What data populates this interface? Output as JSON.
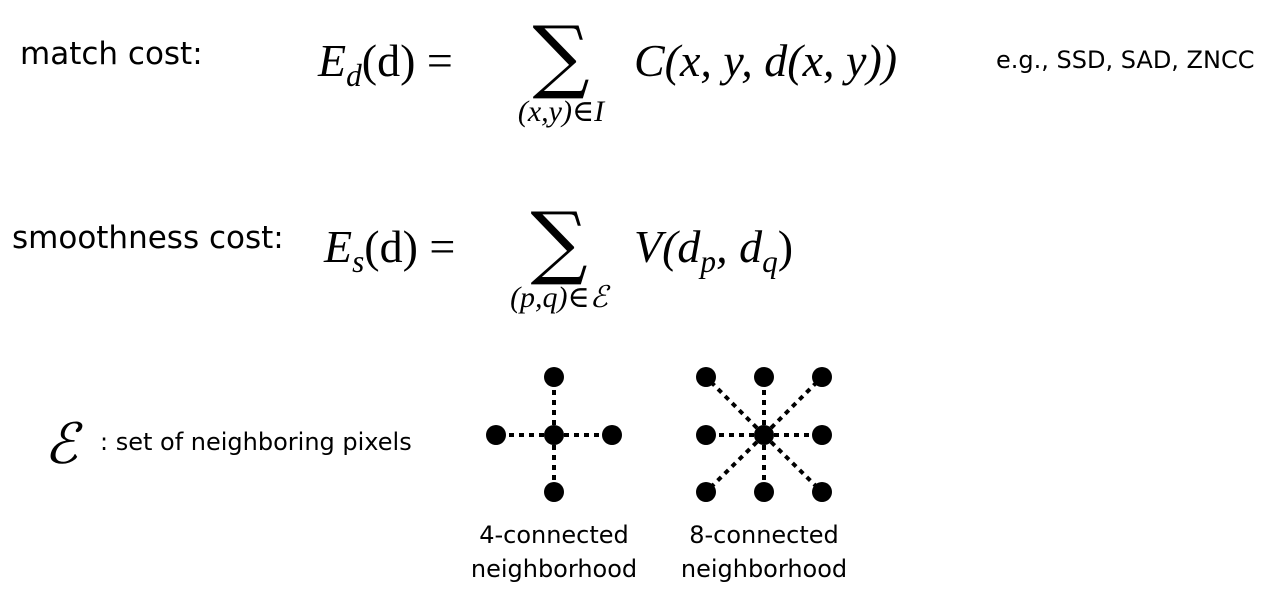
{
  "match": {
    "label": "match cost:",
    "lhs_letter": "E",
    "lhs_sub": "d",
    "lhs_arg": "(d) =",
    "sum_symbol": "∑",
    "sum_under": "(x,y)∈I",
    "body": "C(x, y, d(x, y))",
    "note": "e.g., SSD, SAD, ZNCC"
  },
  "smooth": {
    "label": "smoothness cost:",
    "lhs_letter": "E",
    "lhs_sub": "s",
    "lhs_arg": "(d) =",
    "sum_symbol": "∑",
    "sum_under": "(p,q)∈ℰ",
    "body_func": "V(d",
    "body_sub1": "p",
    "body_mid": ", d",
    "body_sub2": "q",
    "body_end": ")"
  },
  "neighbor": {
    "symbol": "ℰ",
    "desc": ": set of neighboring pixels"
  },
  "diagrams": {
    "four": {
      "caption_line1": "4-connected",
      "caption_line2": "neighborhood"
    },
    "eight": {
      "caption_line1": "8-connected",
      "caption_line2": "neighborhood"
    }
  }
}
